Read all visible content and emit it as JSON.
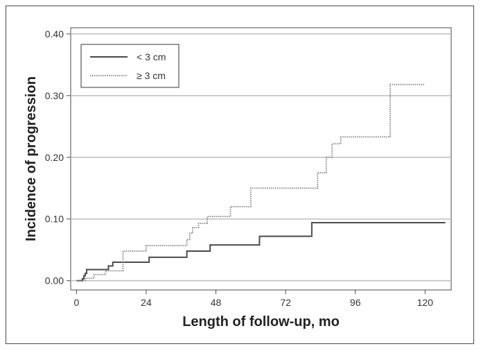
{
  "chart_data": {
    "type": "line",
    "step": true,
    "xlabel": "Length of follow-up, mo",
    "ylabel": "Incidence of progression",
    "xlim": [
      -2,
      129
    ],
    "ylim": [
      -0.015,
      0.41
    ],
    "xticks": [
      0,
      24,
      48,
      72,
      96,
      120
    ],
    "yticks": [
      0.0,
      0.1,
      0.2,
      0.3,
      0.4
    ],
    "ytick_labels": [
      "0.00",
      "0.10",
      "0.20",
      "0.30",
      "0.40"
    ],
    "grid": "horizontal",
    "legend_position": "top-left",
    "series": [
      {
        "name": "< 3 cm",
        "style": "solid",
        "color": "#4a4a4a",
        "x": [
          0,
          2,
          2.5,
          3,
          3.5,
          11,
          12.5,
          25,
          38,
          46,
          63,
          81,
          127
        ],
        "y": [
          0.0,
          0.003,
          0.008,
          0.012,
          0.018,
          0.024,
          0.03,
          0.038,
          0.048,
          0.058,
          0.072,
          0.094,
          0.094
        ]
      },
      {
        "name": "≥ 3 cm",
        "style": "dotted",
        "color": "#8a8a8a",
        "x": [
          0,
          3,
          6,
          10,
          16,
          24,
          38,
          39,
          40,
          42,
          45,
          53,
          60,
          83,
          86,
          88,
          91,
          108,
          120
        ],
        "y": [
          0.0,
          0.004,
          0.01,
          0.016,
          0.048,
          0.057,
          0.067,
          0.077,
          0.086,
          0.093,
          0.104,
          0.12,
          0.15,
          0.175,
          0.2,
          0.222,
          0.233,
          0.318,
          0.318
        ]
      }
    ]
  }
}
